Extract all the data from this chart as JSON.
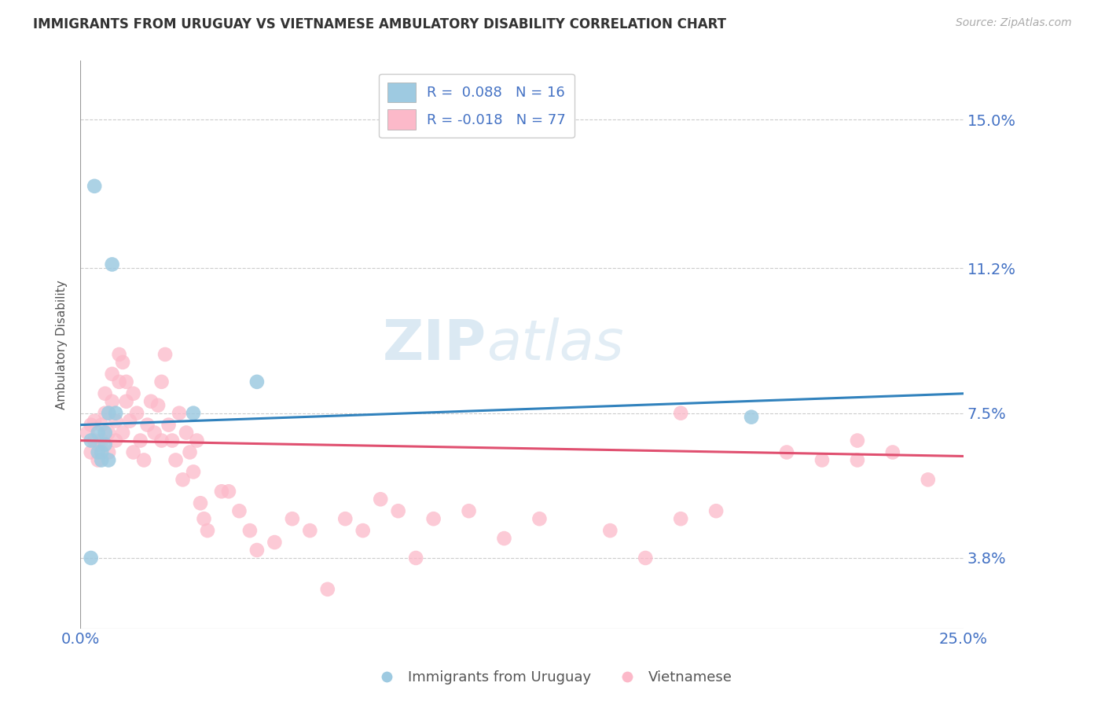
{
  "title": "IMMIGRANTS FROM URUGUAY VS VIETNAMESE AMBULATORY DISABILITY CORRELATION CHART",
  "source": "Source: ZipAtlas.com",
  "ylabel": "Ambulatory Disability",
  "legend_label_1": "Immigrants from Uruguay",
  "legend_label_2": "Vietnamese",
  "r1": 0.088,
  "n1": 16,
  "r2": -0.018,
  "n2": 77,
  "xmin": 0.0,
  "xmax": 0.25,
  "ymin": 0.02,
  "ymax": 0.165,
  "yticks": [
    0.038,
    0.075,
    0.112,
    0.15
  ],
  "ytick_labels": [
    "3.8%",
    "7.5%",
    "11.2%",
    "15.0%"
  ],
  "xtick_labels": [
    "0.0%",
    "25.0%"
  ],
  "color_blue": "#9ecae1",
  "color_pink": "#fcb9c9",
  "color_blue_line": "#3182bd",
  "color_pink_line": "#e05070",
  "color_title": "#333333",
  "color_axis_label": "#555555",
  "color_tick_label": "#4472c4",
  "watermark": "ZIPatlas",
  "blue_x": [
    0.003,
    0.005,
    0.005,
    0.006,
    0.006,
    0.007,
    0.007,
    0.008,
    0.008,
    0.009,
    0.01,
    0.032,
    0.05,
    0.19,
    0.003,
    0.004
  ],
  "blue_y": [
    0.068,
    0.065,
    0.07,
    0.065,
    0.063,
    0.067,
    0.07,
    0.075,
    0.063,
    0.113,
    0.075,
    0.075,
    0.083,
    0.074,
    0.038,
    0.133
  ],
  "pink_x": [
    0.002,
    0.003,
    0.003,
    0.004,
    0.004,
    0.005,
    0.005,
    0.006,
    0.006,
    0.007,
    0.007,
    0.008,
    0.008,
    0.009,
    0.009,
    0.01,
    0.01,
    0.011,
    0.011,
    0.012,
    0.012,
    0.013,
    0.013,
    0.014,
    0.015,
    0.015,
    0.016,
    0.017,
    0.018,
    0.019,
    0.02,
    0.021,
    0.022,
    0.023,
    0.023,
    0.024,
    0.025,
    0.026,
    0.027,
    0.028,
    0.029,
    0.03,
    0.031,
    0.032,
    0.033,
    0.034,
    0.035,
    0.036,
    0.04,
    0.042,
    0.045,
    0.048,
    0.05,
    0.055,
    0.06,
    0.065,
    0.07,
    0.075,
    0.08,
    0.085,
    0.09,
    0.095,
    0.1,
    0.11,
    0.12,
    0.13,
    0.15,
    0.16,
    0.17,
    0.18,
    0.2,
    0.21,
    0.22,
    0.17,
    0.22,
    0.23,
    0.24
  ],
  "pink_y": [
    0.07,
    0.065,
    0.072,
    0.068,
    0.073,
    0.067,
    0.063,
    0.072,
    0.068,
    0.08,
    0.075,
    0.07,
    0.065,
    0.085,
    0.078,
    0.068,
    0.073,
    0.09,
    0.083,
    0.088,
    0.07,
    0.078,
    0.083,
    0.073,
    0.08,
    0.065,
    0.075,
    0.068,
    0.063,
    0.072,
    0.078,
    0.07,
    0.077,
    0.083,
    0.068,
    0.09,
    0.072,
    0.068,
    0.063,
    0.075,
    0.058,
    0.07,
    0.065,
    0.06,
    0.068,
    0.052,
    0.048,
    0.045,
    0.055,
    0.055,
    0.05,
    0.045,
    0.04,
    0.042,
    0.048,
    0.045,
    0.03,
    0.048,
    0.045,
    0.053,
    0.05,
    0.038,
    0.048,
    0.05,
    0.043,
    0.048,
    0.045,
    0.038,
    0.048,
    0.05,
    0.065,
    0.063,
    0.068,
    0.075,
    0.063,
    0.065,
    0.058
  ]
}
